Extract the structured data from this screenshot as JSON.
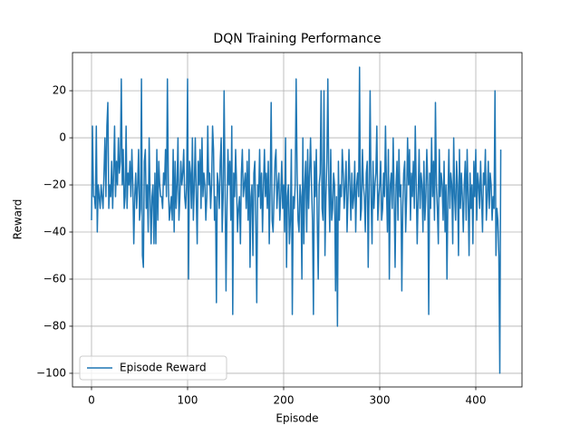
{
  "chart_data": {
    "type": "line",
    "title": "DQN Training Performance",
    "x_label": "Episode",
    "y_label": "Reward",
    "xlim": [
      -19.8,
      448.1
    ],
    "ylim": [
      -105.8,
      36.2
    ],
    "xticks": [
      0,
      100,
      200,
      300,
      400
    ],
    "yticks": [
      {
        "value": -100,
        "label": "−100"
      },
      {
        "value": -80,
        "label": "−80"
      },
      {
        "value": -60,
        "label": "−60"
      },
      {
        "value": -40,
        "label": "−40"
      },
      {
        "value": -20,
        "label": "−20"
      },
      0,
      20
    ],
    "grid": true,
    "legend_position": "lower left",
    "series": [
      {
        "name": "Episode Reward",
        "color": "#1f77b4",
        "x": [
          0,
          1,
          2,
          3,
          4,
          5,
          6,
          7,
          8,
          9,
          10,
          11,
          12,
          13,
          14,
          15,
          16,
          17,
          18,
          19,
          20,
          21,
          22,
          23,
          24,
          25,
          26,
          27,
          28,
          29,
          30,
          31,
          32,
          33,
          34,
          35,
          36,
          37,
          38,
          39,
          40,
          41,
          42,
          43,
          44,
          45,
          46,
          47,
          48,
          49,
          50,
          51,
          52,
          53,
          54,
          55,
          56,
          57,
          58,
          59,
          60,
          61,
          62,
          63,
          64,
          65,
          66,
          67,
          68,
          69,
          70,
          71,
          72,
          73,
          74,
          75,
          76,
          77,
          78,
          79,
          80,
          81,
          82,
          83,
          84,
          85,
          86,
          87,
          88,
          89,
          90,
          91,
          92,
          93,
          94,
          95,
          96,
          97,
          98,
          99,
          100,
          101,
          102,
          103,
          104,
          105,
          106,
          107,
          108,
          109,
          110,
          111,
          112,
          113,
          114,
          115,
          116,
          117,
          118,
          119,
          120,
          121,
          122,
          123,
          124,
          125,
          126,
          127,
          128,
          129,
          130,
          131,
          132,
          133,
          134,
          135,
          136,
          137,
          138,
          139,
          140,
          141,
          142,
          143,
          144,
          145,
          146,
          147,
          148,
          149,
          150,
          151,
          152,
          153,
          154,
          155,
          156,
          157,
          158,
          159,
          160,
          161,
          162,
          163,
          164,
          165,
          166,
          167,
          168,
          169,
          170,
          171,
          172,
          173,
          174,
          175,
          176,
          177,
          178,
          179,
          180,
          181,
          182,
          183,
          184,
          185,
          186,
          187,
          188,
          189,
          190,
          191,
          192,
          193,
          194,
          195,
          196,
          197,
          198,
          199,
          200,
          201,
          202,
          203,
          204,
          205,
          206,
          207,
          208,
          209,
          210,
          211,
          212,
          213,
          214,
          215,
          216,
          217,
          218,
          219,
          220,
          221,
          222,
          223,
          224,
          225,
          226,
          227,
          228,
          229,
          230,
          231,
          232,
          233,
          234,
          235,
          236,
          237,
          238,
          239,
          240,
          241,
          242,
          243,
          244,
          245,
          246,
          247,
          248,
          249,
          250,
          251,
          252,
          253,
          254,
          255,
          256,
          257,
          258,
          259,
          260,
          261,
          262,
          263,
          264,
          265,
          266,
          267,
          268,
          269,
          270,
          271,
          272,
          273,
          274,
          275,
          276,
          277,
          278,
          279,
          280,
          281,
          282,
          283,
          284,
          285,
          286,
          287,
          288,
          289,
          290,
          291,
          292,
          293,
          294,
          295,
          296,
          297,
          298,
          299,
          300,
          301,
          302,
          303,
          304,
          305,
          306,
          307,
          308,
          309,
          310,
          311,
          312,
          313,
          314,
          315,
          316,
          317,
          318,
          319,
          320,
          321,
          322,
          323,
          324,
          325,
          326,
          327,
          328,
          329,
          330,
          331,
          332,
          333,
          334,
          335,
          336,
          337,
          338,
          339,
          340,
          341,
          342,
          343,
          344,
          345,
          346,
          347,
          348,
          349,
          350,
          351,
          352,
          353,
          354,
          355,
          356,
          357,
          358,
          359,
          360,
          361,
          362,
          363,
          364,
          365,
          366,
          367,
          368,
          369,
          370,
          371,
          372,
          373,
          374,
          375,
          376,
          377,
          378,
          379,
          380,
          381,
          382,
          383,
          384,
          385,
          386,
          387,
          388,
          389,
          390,
          391,
          392,
          393,
          394,
          395,
          396,
          397,
          398,
          399,
          400,
          401,
          402,
          403,
          404,
          405,
          406,
          407,
          408,
          409,
          410,
          411,
          412,
          413,
          414,
          415,
          416,
          417,
          418,
          419,
          420,
          421,
          422,
          423,
          424,
          425,
          426
        ],
        "values": [
          -35,
          5,
          -25,
          -25,
          -30,
          5,
          -40,
          -20,
          -25,
          -30,
          -20,
          -25,
          -30,
          -15,
          0,
          -25,
          5,
          15,
          -30,
          -20,
          -25,
          -10,
          -30,
          -15,
          5,
          -25,
          -10,
          -20,
          0,
          -15,
          -10,
          25,
          -20,
          -5,
          -30,
          -25,
          5,
          -30,
          -15,
          -20,
          -10,
          -25,
          -5,
          -20,
          -45,
          -25,
          -15,
          -30,
          -20,
          -5,
          -35,
          -30,
          25,
          -50,
          -55,
          -10,
          -5,
          -30,
          -20,
          -40,
          0,
          -25,
          -45,
          -25,
          -20,
          -45,
          -15,
          -45,
          -5,
          -35,
          -10,
          -20,
          -25,
          -25,
          -30,
          -15,
          -20,
          -5,
          -25,
          25,
          -20,
          -35,
          -30,
          -25,
          -35,
          -5,
          -40,
          -10,
          -30,
          -20,
          0,
          -35,
          -25,
          -10,
          -20,
          -15,
          -5,
          -25,
          -30,
          -20,
          25,
          -60,
          -10,
          -15,
          -30,
          0,
          -35,
          -20,
          0,
          -25,
          -45,
          -10,
          -20,
          -5,
          -30,
          0,
          -25,
          -15,
          -20,
          -35,
          -25,
          5,
          -20,
          -15,
          -30,
          -20,
          5,
          -5,
          -35,
          -25,
          -70,
          -15,
          -20,
          -30,
          -10,
          0,
          -40,
          -25,
          20,
          -20,
          -65,
          -30,
          -5,
          -20,
          -10,
          -35,
          5,
          -75,
          -15,
          -25,
          -5,
          -20,
          -40,
          -30,
          -25,
          -45,
          -15,
          -5,
          -25,
          -20,
          -15,
          -30,
          -10,
          -35,
          -5,
          -55,
          -25,
          -20,
          -50,
          -15,
          -10,
          -35,
          -70,
          -20,
          -25,
          -5,
          -30,
          -15,
          -40,
          -20,
          -5,
          -25,
          -15,
          -30,
          -10,
          -45,
          -20,
          15,
          -35,
          -40,
          -25,
          -10,
          -5,
          -30,
          -20,
          -15,
          -35,
          -25,
          -10,
          -30,
          -20,
          -40,
          0,
          -55,
          -25,
          -20,
          -45,
          -35,
          -5,
          -75,
          -25,
          -30,
          -20,
          25,
          -15,
          -35,
          -40,
          -20,
          -25,
          -60,
          0,
          -45,
          -20,
          -10,
          -40,
          -5,
          -30,
          -15,
          0,
          -20,
          -35,
          -75,
          -10,
          -25,
          -5,
          -35,
          -60,
          -20,
          -15,
          20,
          -30,
          -35,
          20,
          -50,
          -25,
          -10,
          25,
          -20,
          -40,
          -5,
          -35,
          -30,
          -15,
          -20,
          -65,
          -25,
          -80,
          -10,
          -35,
          -20,
          -25,
          -5,
          -15,
          -30,
          -20,
          -10,
          -40,
          -25,
          -5,
          -20,
          -35,
          -15,
          -30,
          -25,
          -10,
          -40,
          -20,
          -15,
          -25,
          30,
          -35,
          -30,
          -5,
          -20,
          -25,
          -40,
          -15,
          -10,
          -55,
          -20,
          20,
          -25,
          -45,
          -10,
          -30,
          -20,
          -15,
          5,
          -35,
          -25,
          -20,
          -10,
          -35,
          -30,
          -15,
          -25,
          5,
          -20,
          -40,
          -5,
          -60,
          -20,
          -15,
          -30,
          0,
          -25,
          -55,
          -20,
          -10,
          -35,
          -5,
          -25,
          -20,
          -65,
          -30,
          -15,
          -10,
          -40,
          -25,
          0,
          -20,
          -5,
          -35,
          -15,
          -25,
          -10,
          -30,
          5,
          -20,
          -45,
          -25,
          -5,
          -30,
          -15,
          -20,
          -40,
          -10,
          -35,
          -25,
          -5,
          -20,
          -75,
          -15,
          -30,
          0,
          -25,
          -10,
          -35,
          15,
          -20,
          -30,
          -45,
          -5,
          -25,
          -15,
          -20,
          -35,
          -10,
          -40,
          -20,
          -60,
          -25,
          -5,
          -30,
          -15,
          -20,
          -45,
          0,
          -25,
          -35,
          -10,
          -20,
          -50,
          -5,
          -30,
          -15,
          -25,
          -40,
          -20,
          -10,
          -35,
          -5,
          -25,
          -50,
          -15,
          -30,
          -20,
          -45,
          -10,
          -25,
          -5,
          -35,
          -15,
          -20,
          -30,
          -10,
          -25,
          -40,
          -15,
          -20,
          -5,
          -35,
          -25,
          -10,
          -30,
          -15,
          -20,
          -35,
          -25,
          -30,
          20,
          -50,
          -30,
          -35,
          -50,
          -100,
          -5
        ]
      }
    ]
  }
}
